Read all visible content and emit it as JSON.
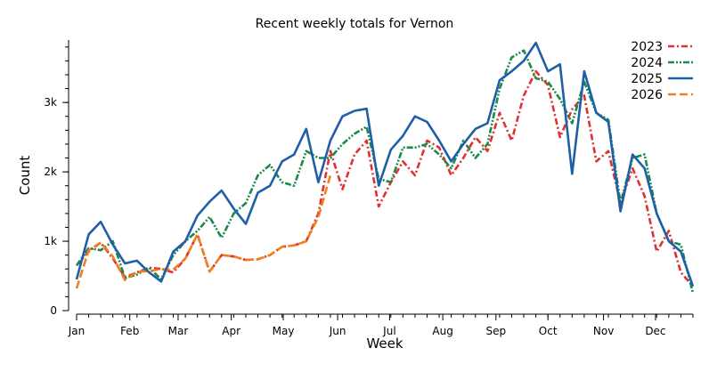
{
  "chart_data": {
    "type": "line",
    "title": "Recent weekly totals for Vernon",
    "xlabel": "Week",
    "ylabel": "Count",
    "x_range": [
      1,
      52
    ],
    "ylim": [
      0,
      3900
    ],
    "y_ticks": [
      0,
      1000,
      2000,
      3000
    ],
    "y_tick_labels": [
      "0",
      "1k",
      "2k",
      "3k"
    ],
    "y_minor_step": 200,
    "month_ticks": [
      {
        "label": "Jan",
        "week": 1
      },
      {
        "label": "Feb",
        "week": 5.4
      },
      {
        "label": "Mar",
        "week": 9.4
      },
      {
        "label": "Apr",
        "week": 13.8
      },
      {
        "label": "May",
        "week": 18.1
      },
      {
        "label": "Jun",
        "week": 22.6
      },
      {
        "label": "Jul",
        "week": 26.9
      },
      {
        "label": "Aug",
        "week": 31.3
      },
      {
        "label": "Sep",
        "week": 35.7
      },
      {
        "label": "Oct",
        "week": 40
      },
      {
        "label": "Nov",
        "week": 44.6
      },
      {
        "label": "Dec",
        "week": 48.9
      }
    ],
    "grid": false,
    "legend_position": "top-right",
    "series": [
      {
        "name": "2023",
        "color": "#e03030",
        "dash": "dash-dot",
        "values": [
          650,
          850,
          980,
          750,
          480,
          550,
          620,
          600,
          550,
          750,
          1100,
          560,
          800,
          780,
          730,
          740,
          800,
          920,
          940,
          1000,
          1400,
          2300,
          1750,
          2250,
          2450,
          1500,
          1850,
          2150,
          1950,
          2450,
          2350,
          1950,
          2200,
          2500,
          2300,
          2850,
          2450,
          3100,
          3450,
          3250,
          2500,
          2900,
          3100,
          2150,
          2300,
          1550,
          2050,
          1650,
          850,
          1150,
          550,
          350
        ]
      },
      {
        "name": "2024",
        "color": "#1a8a4a",
        "dash": "dash-dot-dot",
        "values": [
          650,
          900,
          870,
          1000,
          470,
          520,
          620,
          450,
          800,
          1000,
          1150,
          1350,
          1050,
          1400,
          1550,
          1950,
          2100,
          1850,
          1800,
          2300,
          2200,
          2200,
          2400,
          2550,
          2650,
          1900,
          1850,
          2350,
          2350,
          2400,
          2250,
          2050,
          2450,
          2200,
          2400,
          3200,
          3650,
          3750,
          3350,
          3300,
          3050,
          2700,
          3300,
          2850,
          2750,
          1550,
          2200,
          2250,
          1400,
          1000,
          950,
          250
        ]
      },
      {
        "name": "2025",
        "color": "#1f5fa8",
        "dash": "solid",
        "values": [
          450,
          1100,
          1280,
          950,
          680,
          720,
          550,
          420,
          850,
          1000,
          1370,
          1570,
          1730,
          1470,
          1250,
          1700,
          1800,
          2150,
          2250,
          2620,
          1850,
          2450,
          2800,
          2880,
          2910,
          1800,
          2320,
          2520,
          2800,
          2720,
          2450,
          2150,
          2400,
          2620,
          2700,
          3320,
          3450,
          3600,
          3860,
          3450,
          3550,
          1970,
          3450,
          2850,
          2720,
          1430,
          2250,
          2050,
          1400,
          1000,
          850,
          350
        ]
      },
      {
        "name": "2026",
        "color": "#f07f20",
        "dash": "dashed",
        "values": [
          320,
          870,
          980,
          780,
          440,
          560,
          570,
          600,
          590,
          750,
          1100,
          560,
          800,
          780,
          730,
          740,
          800,
          920,
          940,
          1000,
          1350,
          1950
        ]
      }
    ]
  }
}
